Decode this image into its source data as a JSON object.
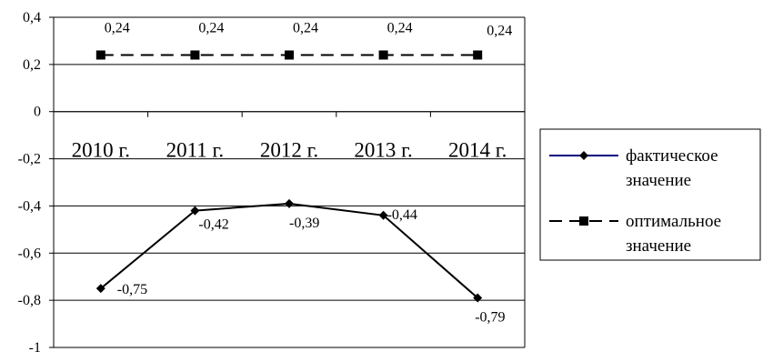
{
  "chart_data": {
    "type": "line",
    "categories": [
      "2010 г.",
      "2011 г.",
      "2012 г.",
      "2013 г.",
      "2014 г."
    ],
    "ylim": [
      -1,
      0.4
    ],
    "yticks": [
      0.4,
      0.2,
      0,
      -0.2,
      -0.4,
      -0.6,
      -0.8,
      -1
    ],
    "ytick_labels": [
      "0,4",
      "0,2",
      "0",
      "-0,2",
      "-0,4",
      "-0,6",
      "-0,8",
      "-1"
    ],
    "grid": true,
    "legend_position": "right",
    "series": [
      {
        "name_lines": [
          "фактическое",
          "значение"
        ],
        "values": [
          -0.75,
          -0.42,
          -0.39,
          -0.44,
          -0.79
        ],
        "labels": [
          "-0,75",
          "-0,42",
          "-0,39",
          "-0,44",
          "-0,79"
        ],
        "marker": "diamond",
        "line_style": "solid",
        "color": "#000000",
        "legend_line_color": "#000080"
      },
      {
        "name_lines": [
          "оптимальное",
          "значение"
        ],
        "values": [
          0.24,
          0.24,
          0.24,
          0.24,
          0.24
        ],
        "labels": [
          "0,24",
          "0,24",
          "0,24",
          "0,24",
          "0,24"
        ],
        "marker": "square",
        "line_style": "dashed",
        "color": "#000000",
        "legend_line_color": "#000000"
      }
    ]
  }
}
